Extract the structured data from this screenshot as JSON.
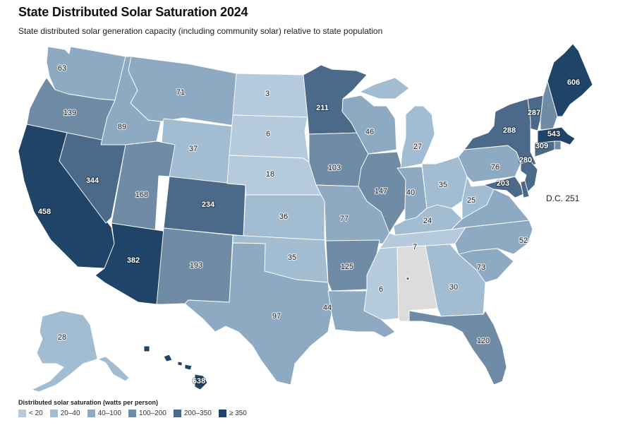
{
  "title": "State Distributed Solar Saturation 2024",
  "subtitle": "State distributed solar generation capacity (including community solar) relative to state population",
  "dc_label": "D.C. 251",
  "legend": {
    "title": "Distributed solar saturation (watts per person)",
    "bins": [
      {
        "label": "< 20",
        "color": "#b5cbdd"
      },
      {
        "label": "20–40",
        "color": "#a2bcd2"
      },
      {
        "label": "40–100",
        "color": "#8eaac2"
      },
      {
        "label": "100–200",
        "color": "#6f8ba5"
      },
      {
        "label": "200–350",
        "color": "#4b6a8a"
      },
      {
        "label": "≥ 350",
        "color": "#1f4468"
      }
    ],
    "no_data_color": "#dcdcdc"
  },
  "states": [
    {
      "code": "WA",
      "value": "63",
      "bin": 2
    },
    {
      "code": "OR",
      "value": "139",
      "bin": 3
    },
    {
      "code": "CA",
      "value": "458",
      "bin": 5
    },
    {
      "code": "NV",
      "value": "344",
      "bin": 4
    },
    {
      "code": "ID",
      "value": "89",
      "bin": 2
    },
    {
      "code": "MT",
      "value": "71",
      "bin": 2
    },
    {
      "code": "WY",
      "value": "37",
      "bin": 1
    },
    {
      "code": "UT",
      "value": "168",
      "bin": 3
    },
    {
      "code": "AZ",
      "value": "382",
      "bin": 5
    },
    {
      "code": "CO",
      "value": "234",
      "bin": 4
    },
    {
      "code": "NM",
      "value": "193",
      "bin": 3
    },
    {
      "code": "ND",
      "value": "3",
      "bin": 0
    },
    {
      "code": "SD",
      "value": "6",
      "bin": 0
    },
    {
      "code": "NE",
      "value": "18",
      "bin": 0
    },
    {
      "code": "KS",
      "value": "36",
      "bin": 1
    },
    {
      "code": "OK",
      "value": "35",
      "bin": 1
    },
    {
      "code": "TX",
      "value": "97",
      "bin": 2
    },
    {
      "code": "MN",
      "value": "211",
      "bin": 4
    },
    {
      "code": "IA",
      "value": "103",
      "bin": 3
    },
    {
      "code": "MO",
      "value": "77",
      "bin": 2
    },
    {
      "code": "AR",
      "value": "125",
      "bin": 3
    },
    {
      "code": "LA",
      "value": "44",
      "bin": 2
    },
    {
      "code": "WI",
      "value": "46",
      "bin": 2
    },
    {
      "code": "IL",
      "value": "147",
      "bin": 3
    },
    {
      "code": "MI",
      "value": "27",
      "bin": 1
    },
    {
      "code": "IN",
      "value": "40",
      "bin": 2
    },
    {
      "code": "OH",
      "value": "35",
      "bin": 1
    },
    {
      "code": "KY",
      "value": "24",
      "bin": 1
    },
    {
      "code": "TN",
      "value": "7",
      "bin": 0
    },
    {
      "code": "MS",
      "value": "6",
      "bin": 0
    },
    {
      "code": "AL",
      "value": "*",
      "bin": -1
    },
    {
      "code": "GA",
      "value": "30",
      "bin": 1
    },
    {
      "code": "FL",
      "value": "120",
      "bin": 3
    },
    {
      "code": "SC",
      "value": "73",
      "bin": 2
    },
    {
      "code": "NC",
      "value": "52",
      "bin": 2
    },
    {
      "code": "VA",
      "value": "",
      "bin": 2
    },
    {
      "code": "WV",
      "value": "25",
      "bin": 1
    },
    {
      "code": "PA",
      "value": "76",
      "bin": 2
    },
    {
      "code": "NY",
      "value": "288",
      "bin": 4
    },
    {
      "code": "VT",
      "value": "287",
      "bin": 4
    },
    {
      "code": "NH",
      "value": "",
      "bin": 3
    },
    {
      "code": "ME",
      "value": "606",
      "bin": 5
    },
    {
      "code": "MA",
      "value": "543",
      "bin": 5
    },
    {
      "code": "CT",
      "value": "309",
      "bin": 4
    },
    {
      "code": "RI",
      "value": "",
      "bin": 3
    },
    {
      "code": "NJ",
      "value": "280",
      "bin": 4
    },
    {
      "code": "MD",
      "value": "203",
      "bin": 4
    },
    {
      "code": "DE",
      "value": "",
      "bin": 4
    },
    {
      "code": "AK",
      "value": "28",
      "bin": 1
    },
    {
      "code": "HI",
      "value": "638",
      "bin": 5
    }
  ]
}
